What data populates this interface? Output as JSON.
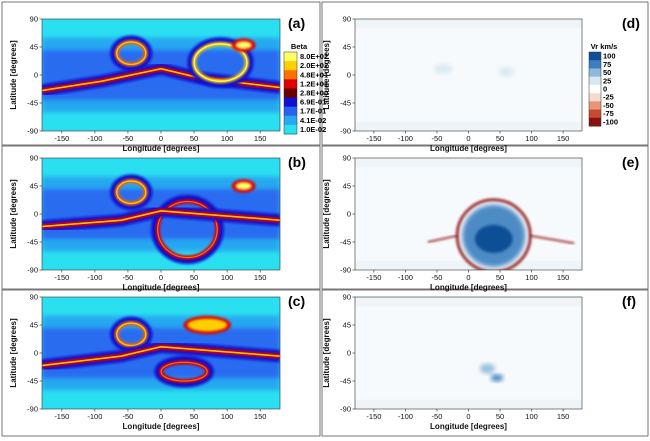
{
  "chart_data": [
    {
      "type": "heatmap",
      "panel": "(a)",
      "variable": "Beta",
      "scale": "log",
      "xlabel": "Longitude [degrees]",
      "ylabel": "Latitude [degrees]",
      "xlim": [
        -180,
        180
      ],
      "ylim": [
        -90,
        90
      ],
      "xticks": [
        -150,
        -100,
        -50,
        0,
        50,
        100,
        150
      ],
      "yticks": [
        90,
        45,
        0,
        -45,
        -90
      ],
      "high_beta_features": [
        {
          "shape": "ring",
          "center": [
            -45,
            35
          ],
          "size": [
            22,
            18
          ],
          "level": 48
        },
        {
          "shape": "band",
          "lat_at_lon": [
            [
              -180,
              -25
            ],
            [
              -90,
              -10
            ],
            [
              0,
              10
            ],
            [
              60,
              -5
            ],
            [
              180,
              -20
            ]
          ],
          "level": 12
        },
        {
          "shape": "ring",
          "center": [
            90,
            20
          ],
          "size": [
            40,
            30
          ],
          "level": 200
        },
        {
          "shape": "spot",
          "center": [
            125,
            48
          ],
          "size": [
            12,
            6
          ],
          "level": 800
        }
      ]
    },
    {
      "type": "heatmap",
      "panel": "(b)",
      "variable": "Beta",
      "scale": "log",
      "xlabel": "Longitude [degrees]",
      "ylabel": "Latitude [degrees]",
      "xlim": [
        -180,
        180
      ],
      "ylim": [
        -90,
        90
      ],
      "xticks": [
        -150,
        -100,
        -50,
        0,
        50,
        100,
        150
      ],
      "yticks": [
        90,
        45,
        0,
        -45,
        -90
      ],
      "high_beta_features": [
        {
          "shape": "ring",
          "center": [
            -45,
            35
          ],
          "size": [
            22,
            18
          ],
          "level": 48
        },
        {
          "shape": "ring",
          "center": [
            40,
            -25
          ],
          "size": [
            45,
            45
          ],
          "level": 12
        },
        {
          "shape": "band",
          "lat_at_lon": [
            [
              -180,
              -20
            ],
            [
              -60,
              -10
            ],
            [
              0,
              5
            ],
            [
              180,
              -10
            ]
          ],
          "level": 12
        },
        {
          "shape": "spot",
          "center": [
            125,
            45
          ],
          "size": [
            12,
            6
          ],
          "level": 800
        }
      ]
    },
    {
      "type": "heatmap",
      "panel": "(c)",
      "variable": "Beta",
      "scale": "log",
      "xlabel": "Longitude [degrees]",
      "ylabel": "Latitude [degrees]",
      "xlim": [
        -180,
        180
      ],
      "ylim": [
        -90,
        90
      ],
      "xticks": [
        -150,
        -100,
        -50,
        0,
        50,
        100,
        150
      ],
      "yticks": [
        90,
        45,
        0,
        -45,
        -90
      ],
      "high_beta_features": [
        {
          "shape": "ring",
          "center": [
            -45,
            30
          ],
          "size": [
            22,
            18
          ],
          "level": 48
        },
        {
          "shape": "loop",
          "center": [
            35,
            -30
          ],
          "size": [
            35,
            15
          ],
          "level": 12
        },
        {
          "shape": "band",
          "lat_at_lon": [
            [
              -180,
              -20
            ],
            [
              -60,
              -5
            ],
            [
              0,
              10
            ],
            [
              180,
              -5
            ]
          ],
          "level": 12
        },
        {
          "shape": "spot",
          "center": [
            70,
            45
          ],
          "size": [
            30,
            10
          ],
          "level": 200
        }
      ]
    },
    {
      "type": "heatmap",
      "panel": "(d)",
      "variable": "Vr km/s",
      "scale": "linear",
      "xlabel": "Longitude [degrees]",
      "ylabel": "Latitude [degrees]",
      "xlim": [
        -180,
        180
      ],
      "ylim": [
        -90,
        90
      ],
      "xticks": [
        -150,
        -100,
        -50,
        0,
        50,
        100,
        150
      ],
      "yticks": [
        90,
        45,
        0,
        -45,
        -90
      ],
      "vlim": [
        -100,
        100
      ],
      "features": [
        {
          "shape": "blob",
          "center": [
            -40,
            10
          ],
          "size": [
            15,
            8
          ],
          "value": 20
        },
        {
          "shape": "blob",
          "center": [
            60,
            5
          ],
          "size": [
            12,
            8
          ],
          "value": 20
        }
      ]
    },
    {
      "type": "heatmap",
      "panel": "(e)",
      "variable": "Vr km/s",
      "scale": "linear",
      "xlabel": "Longitude [degrees]",
      "ylabel": "Latitude [degrees]",
      "xlim": [
        -180,
        180
      ],
      "ylim": [
        -90,
        90
      ],
      "xticks": [
        -150,
        -100,
        -50,
        0,
        50,
        100,
        150
      ],
      "yticks": [
        90,
        45,
        0,
        -45,
        -90
      ],
      "vlim": [
        -100,
        100
      ],
      "features": [
        {
          "shape": "dome",
          "center": [
            40,
            -35
          ],
          "size": [
            50,
            50
          ],
          "value": 80
        },
        {
          "shape": "shell",
          "center": [
            40,
            -35
          ],
          "size": [
            58,
            58
          ],
          "value": -90
        }
      ]
    },
    {
      "type": "heatmap",
      "panel": "(f)",
      "variable": "Vr km/s",
      "scale": "linear",
      "xlabel": "Longitude [degrees]",
      "ylabel": "Latitude [degrees]",
      "xlim": [
        -180,
        180
      ],
      "ylim": [
        -90,
        90
      ],
      "xticks": [
        -150,
        -100,
        -50,
        0,
        50,
        100,
        150
      ],
      "yticks": [
        90,
        45,
        0,
        -45,
        -90
      ],
      "vlim": [
        -100,
        100
      ],
      "features": [
        {
          "shape": "blob",
          "center": [
            30,
            -25
          ],
          "size": [
            12,
            8
          ],
          "value": 60
        },
        {
          "shape": "blob",
          "center": [
            45,
            -40
          ],
          "size": [
            10,
            6
          ],
          "value": 70
        }
      ]
    }
  ],
  "colorbars": {
    "beta": {
      "title": "Beta",
      "labels": [
        "8.0E+02",
        "2.0E+02",
        "4.8E+01",
        "1.2E+01",
        "2.8E+00",
        "6.9E-01",
        "1.7E-01",
        "4.1E-02",
        "1.0E-02"
      ],
      "colors": [
        "#ffff66",
        "#ffd000",
        "#ff7000",
        "#e00000",
        "#6a0000",
        "#1010d0",
        "#2a62f0",
        "#28a8f0",
        "#2ae0f0"
      ]
    },
    "vr": {
      "title": "Vr km/s",
      "labels": [
        "100",
        "75",
        "50",
        "25",
        "0",
        "-25",
        "-50",
        "-75",
        "-100"
      ],
      "colors": [
        "#0f4f96",
        "#3b7fc0",
        "#8fb8dc",
        "#d8e8f2",
        "#ffffff",
        "#f5dcd2",
        "#e89676",
        "#c94a32",
        "#8a1010"
      ]
    }
  }
}
